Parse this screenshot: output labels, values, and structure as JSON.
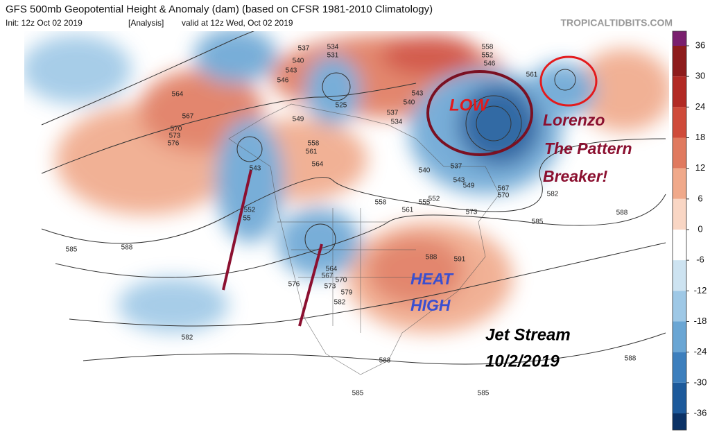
{
  "header": {
    "title": "GFS 500mb Geopotential Height & Anomaly (dam) (based on CFSR 1981-2010 Climatology)",
    "init": "Init: 12z Oct 02 2019",
    "analysis": "[Analysis]",
    "valid": "valid at 12z Wed, Oct 02 2019",
    "source": "TROPICALTIDBITS.COM"
  },
  "annotations": {
    "low": "LOW",
    "lorenzo": [
      "Lorenzo",
      "The Pattern",
      "Breaker!"
    ],
    "heat": "HEAT",
    "high": "HIGH",
    "jet": [
      "Jet Stream",
      "10/2/2019"
    ]
  },
  "colorbar": {
    "ticks": [
      36,
      30,
      24,
      18,
      12,
      6,
      0,
      -6,
      -12,
      -18,
      -24,
      -30,
      -36
    ],
    "colors": [
      "#7a1f6e",
      "#8e1c1c",
      "#b22a24",
      "#cf4b3a",
      "#e07a5f",
      "#f0a98a",
      "#f9d6c4",
      "#ffffff",
      "#cde3f1",
      "#9ec8e6",
      "#6aa6d4",
      "#3d7fbd",
      "#1d5a9b",
      "#0b3266"
    ]
  },
  "contour_labels": [
    "537",
    "534",
    "531",
    "540",
    "543",
    "546",
    "558",
    "552",
    "546",
    "561",
    "564",
    "567",
    "570",
    "573",
    "576",
    "549",
    "558",
    "561",
    "564",
    "525",
    "543",
    "540",
    "537",
    "534",
    "540",
    "537",
    "543",
    "549",
    "552",
    "555",
    "561",
    "558",
    "567",
    "570",
    "573",
    "582",
    "585",
    "588",
    "543",
    "552",
    "55",
    "585",
    "588",
    "582",
    "576",
    "564",
    "567",
    "570",
    "573",
    "579",
    "582",
    "588",
    "591",
    "588",
    "585",
    "585",
    "588"
  ]
}
